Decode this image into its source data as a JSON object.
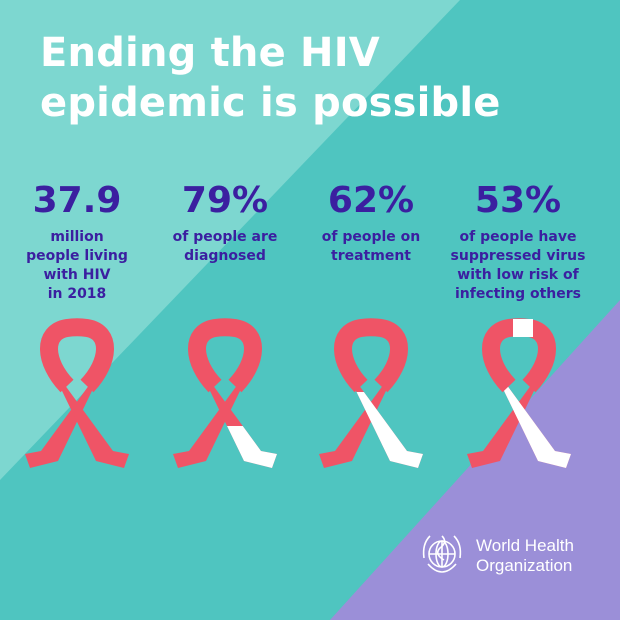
{
  "title": {
    "line1": "Ending the HIV",
    "line2": "epidemic is possible"
  },
  "stats": [
    {
      "value": "37.9",
      "description": "million\npeople living\nwith HIV\nin 2018",
      "white_fraction": 0
    },
    {
      "value": "79%",
      "description": "of people are\ndiagnosed",
      "white_fraction": 0.21
    },
    {
      "value": "62%",
      "description": "of people on\ntreatment",
      "white_fraction": 0.38
    },
    {
      "value": "53%",
      "description": "of people have\nsuppressed virus\nwith low risk of\ninfecting others",
      "white_fraction": 0.47
    }
  ],
  "logo": {
    "line1": "World Health",
    "line2": "Organization",
    "icon": "who-emblem-icon"
  },
  "colors": {
    "teal_light": "#7dd7d0",
    "teal": "#4fc5c0",
    "purple": "#9b8fd8",
    "heading_text": "#ffffff",
    "stat_text": "#3b1fa0",
    "ribbon_red": "#ef5466",
    "ribbon_white": "#ffffff"
  }
}
